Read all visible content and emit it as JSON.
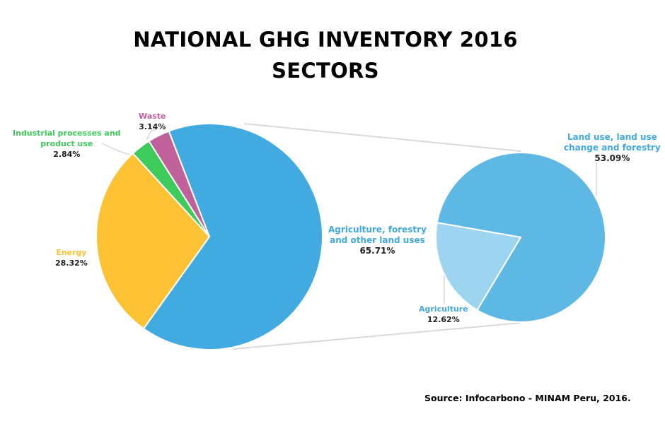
{
  "title": {
    "line1": "NATIONAL GHG INVENTORY 2016",
    "line2": "SECTORS"
  },
  "source": "Source: Infocarbono - MINAM Peru, 2016.",
  "colors": {
    "afolu": "#41ABE1",
    "energy": "#FDC234",
    "industrial": "#3DCB5B",
    "waste": "#C1619C",
    "land_use": "#5DB8E4",
    "agriculture": "#9DD4F0",
    "connector": "#d9d9d9"
  },
  "chart_data": [
    {
      "type": "pie",
      "title": "NATIONAL GHG INVENTORY 2016 SECTORS",
      "slices": [
        {
          "key": "afolu",
          "label_lines": [
            "Agriculture, forestry",
            "and other land uses"
          ],
          "value": 65.71,
          "value_text": "65.71%",
          "color": "#41ABE1"
        },
        {
          "key": "energy",
          "label_lines": [
            "Energy"
          ],
          "value": 28.32,
          "value_text": "28.32%",
          "color": "#FDC234"
        },
        {
          "key": "industrial",
          "label_lines": [
            "Industrial processes and",
            "product use"
          ],
          "value": 2.84,
          "value_text": "2.84%",
          "color": "#3DCB5B"
        },
        {
          "key": "waste",
          "label_lines": [
            "Waste"
          ],
          "value": 3.14,
          "value_text": "3.14%",
          "color": "#C1619C"
        }
      ]
    },
    {
      "type": "pie",
      "breakdown_of": "afolu",
      "slices": [
        {
          "key": "land_use",
          "label_lines": [
            "Land use, land use",
            "change and forestry"
          ],
          "value": 53.09,
          "value_text": "53.09%",
          "color": "#5DB8E4"
        },
        {
          "key": "agriculture",
          "label_lines": [
            "Agriculture"
          ],
          "value": 12.62,
          "value_text": "12.62%",
          "color": "#9DD4F0"
        }
      ]
    }
  ]
}
